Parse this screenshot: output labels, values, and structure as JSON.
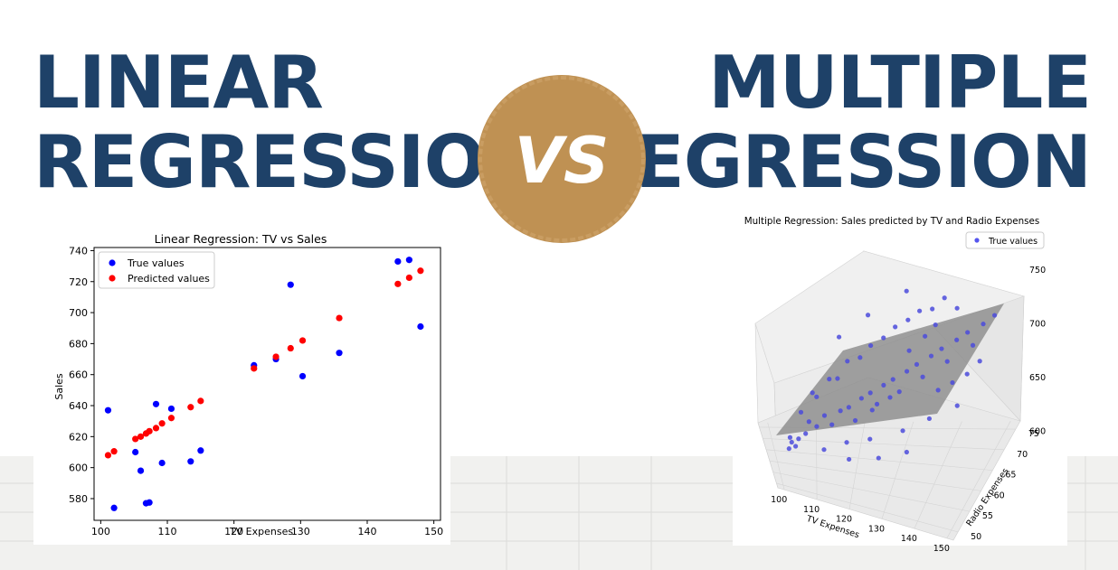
{
  "headline": {
    "left_line1": "LINEAR",
    "left_line2": "REGRESSION",
    "right_line1": "MULTIPLE",
    "right_line2": "REGRESSION",
    "vs_label": "VS"
  },
  "colors": {
    "headline": "#1e4168",
    "badge": "#bf9153",
    "true_values": "#0000ff",
    "predicted_values": "#ff0000",
    "plane": "#8c8c8c"
  },
  "chart_data": [
    {
      "type": "scatter",
      "title": "Linear Regression: TV vs Sales",
      "xlabel": "TV Expenses",
      "ylabel": "Sales",
      "xlim": [
        99,
        151
      ],
      "ylim": [
        566,
        742
      ],
      "xticks": [
        100,
        110,
        120,
        130,
        140,
        150
      ],
      "yticks": [
        580,
        600,
        620,
        640,
        660,
        680,
        700,
        720,
        740
      ],
      "legend": "top-left",
      "series": [
        {
          "name": "True values",
          "color": "#0000ff",
          "points": [
            [
              101.1,
              637
            ],
            [
              102,
              574
            ],
            [
              105.2,
              610
            ],
            [
              106,
              598
            ],
            [
              106.8,
              577
            ],
            [
              107.3,
              577.5
            ],
            [
              108.3,
              641
            ],
            [
              109.2,
              603
            ],
            [
              110.6,
              638
            ],
            [
              113.5,
              604
            ],
            [
              115,
              611
            ],
            [
              123,
              666
            ],
            [
              126.3,
              670
            ],
            [
              128.5,
              718
            ],
            [
              130.3,
              659
            ],
            [
              135.8,
              674
            ],
            [
              144.6,
              733
            ],
            [
              146.3,
              734
            ],
            [
              148,
              691
            ]
          ]
        },
        {
          "name": "Predicted values",
          "color": "#ff0000",
          "points": [
            [
              101.1,
              608
            ],
            [
              102,
              610.5
            ],
            [
              105.2,
              618.5
            ],
            [
              106,
              620
            ],
            [
              106.8,
              622
            ],
            [
              107.3,
              623.5
            ],
            [
              108.3,
              625.5
            ],
            [
              109.2,
              628.5
            ],
            [
              110.6,
              632
            ],
            [
              113.5,
              639
            ],
            [
              115,
              643
            ],
            [
              123,
              664
            ],
            [
              126.3,
              671.5
            ],
            [
              128.5,
              677
            ],
            [
              130.3,
              682
            ],
            [
              135.8,
              696.5
            ],
            [
              144.6,
              718.5
            ],
            [
              146.3,
              722.5
            ],
            [
              148,
              727
            ]
          ]
        }
      ]
    },
    {
      "type": "scatter",
      "title": "Multiple Regression: Sales predicted by TV and Radio Expenses",
      "xlabel": "TV Expenses",
      "ylabel": "Radio Expenses",
      "zlabel": "",
      "xlim": [
        98,
        152
      ],
      "ylim": [
        48,
        77
      ],
      "zlim": [
        560,
        770
      ],
      "xticks": [
        100,
        110,
        120,
        130,
        140,
        150
      ],
      "yticks": [
        50,
        55,
        60,
        65,
        70,
        75
      ],
      "zticks": [
        600,
        650,
        700,
        750
      ],
      "legend": "top-right",
      "series": [
        {
          "name": "True values",
          "color": "#0000ff",
          "points": [
            [
              102,
              52,
              601
            ],
            [
              103,
              54,
              604
            ],
            [
              104,
              53,
              603
            ],
            [
              105,
              55,
              607
            ],
            [
              103,
              58,
              598
            ],
            [
              107,
              56,
              612
            ],
            [
              108,
              59,
              618
            ],
            [
              110,
              57,
              620
            ],
            [
              112,
              60,
              625
            ],
            [
              114,
              58,
              622
            ],
            [
              116,
              61,
              630
            ],
            [
              118,
              62,
              632
            ],
            [
              120,
              59,
              628
            ],
            [
              121,
              63,
              641
            ],
            [
              123,
              64,
              645
            ],
            [
              125,
              62,
              640
            ],
            [
              126,
              65,
              652
            ],
            [
              128,
              66,
              656
            ],
            [
              130,
              64,
              650
            ],
            [
              131,
              67,
              663
            ],
            [
              133,
              68,
              668
            ],
            [
              135,
              66,
              662
            ],
            [
              136,
              69,
              675
            ],
            [
              138,
              70,
              680
            ],
            [
              140,
              68,
              674
            ],
            [
              141,
              71,
              687
            ],
            [
              143,
              72,
              692
            ],
            [
              145,
              70,
              686
            ],
            [
              146,
              73,
              698
            ],
            [
              148,
              74,
              704
            ],
            [
              110,
              62,
              640
            ],
            [
              115,
              65,
              655
            ],
            [
              120,
              68,
              672
            ],
            [
              125,
              70,
              690
            ],
            [
              130,
              72,
              705
            ],
            [
              135,
              73,
              715
            ],
            [
              112,
              55,
              600
            ],
            [
              118,
              57,
              607
            ],
            [
              124,
              58,
              612
            ],
            [
              132,
              60,
              620
            ],
            [
              138,
              62,
              630
            ],
            [
              144,
              64,
              640
            ],
            [
              106,
              60,
              625
            ],
            [
              109,
              64,
              638
            ],
            [
              113,
              66,
              650
            ],
            [
              117,
              69,
              663
            ],
            [
              122,
              71,
              676
            ],
            [
              127,
              73,
              692
            ],
            [
              132,
              74,
              708
            ],
            [
              137,
              75,
              720
            ],
            [
              140,
              74,
              712
            ],
            [
              142,
              66,
              658
            ],
            [
              145,
              67,
              665
            ],
            [
              147,
              69,
              672
            ],
            [
              119,
              54,
              598
            ],
            [
              127,
              55,
              603
            ],
            [
              134,
              57,
              608
            ],
            [
              115,
              71,
              685
            ],
            [
              121,
              74,
              702
            ],
            [
              129,
              75,
              728
            ],
            [
              136,
              72,
              700
            ],
            [
              139,
              65,
              652
            ],
            [
              124,
              61,
              636
            ],
            [
              128,
              63,
              646
            ],
            [
              131,
              69,
              680
            ],
            [
              134,
              71,
              690
            ]
          ]
        }
      ]
    }
  ]
}
